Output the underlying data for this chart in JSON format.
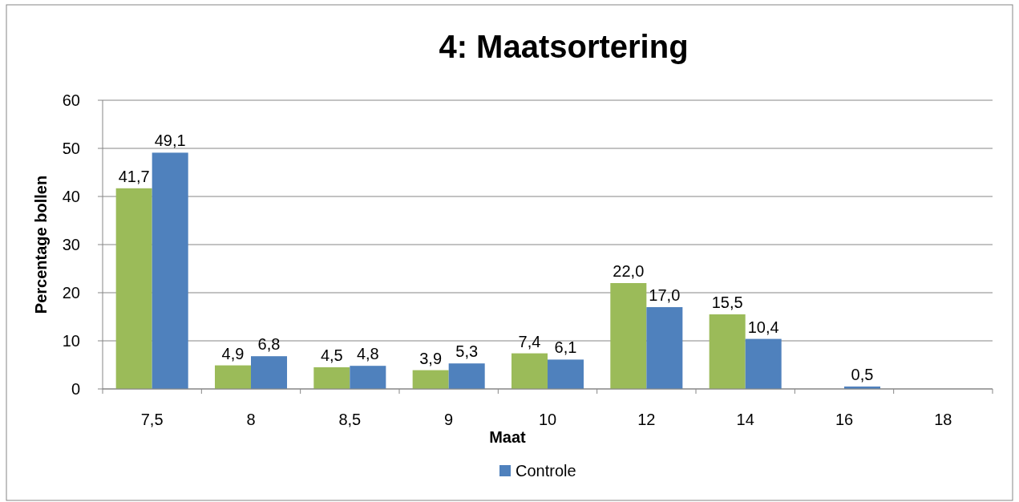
{
  "chart_data": {
    "type": "bar",
    "title": "4: Maatsortering",
    "xlabel": "Maat",
    "ylabel": "Percentage bollen",
    "categories": [
      "7,5",
      "8",
      "8,5",
      "9",
      "10",
      "12",
      "14",
      "16",
      "18"
    ],
    "series": [
      {
        "color": "#9bbb59",
        "values": [
          41.7,
          4.9,
          4.5,
          3.9,
          7.4,
          22.0,
          15.5,
          null,
          null
        ],
        "value_labels": [
          "41,7",
          "4,9",
          "4,5",
          "3,9",
          "7,4",
          "22,0",
          "15,5",
          null,
          null
        ]
      },
      {
        "name": "Controle",
        "color": "#4f81bd",
        "values": [
          49.1,
          6.8,
          4.8,
          5.3,
          6.1,
          17.0,
          10.4,
          0.5,
          null
        ],
        "value_labels": [
          "49,1",
          "6,8",
          "4,8",
          "5,3",
          "6,1",
          "17,0",
          "10,4",
          "0,5",
          null
        ]
      }
    ],
    "ylim": [
      0,
      60
    ],
    "yticks": [
      0,
      10,
      20,
      30,
      40,
      50,
      60
    ],
    "grid": "y",
    "legend": "bottom"
  }
}
